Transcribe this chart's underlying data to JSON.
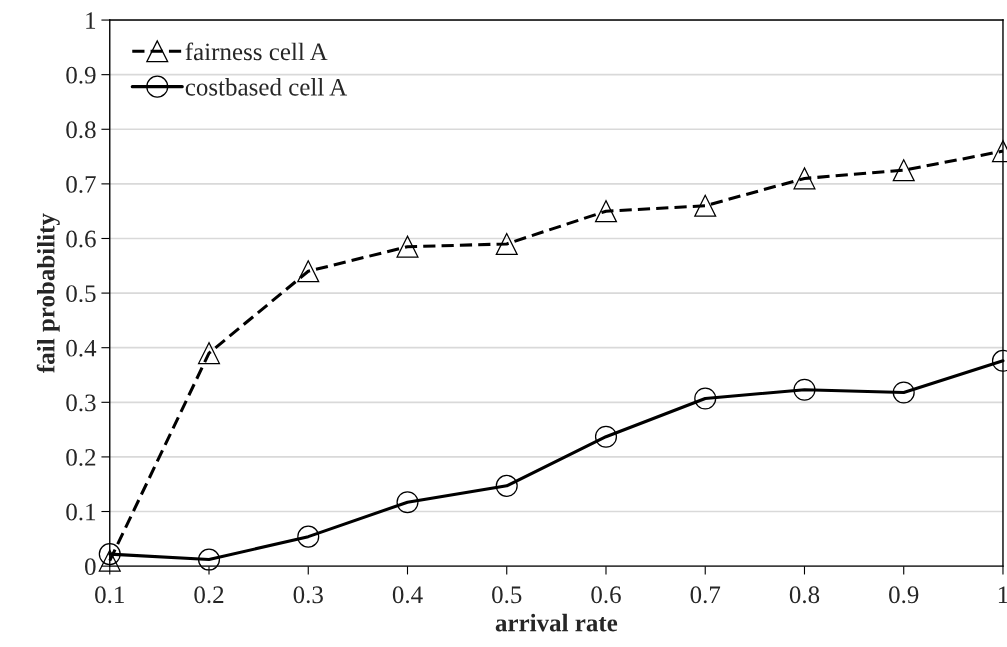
{
  "chart_data": {
    "type": "line",
    "xlabel": "arrival rate",
    "ylabel": "fail probability",
    "x": [
      0.1,
      0.2,
      0.3,
      0.4,
      0.5,
      0.6,
      0.7,
      0.8,
      0.9,
      1
    ],
    "series": [
      {
        "name": "fairness cell A",
        "color": "#000000",
        "marker": "triangle",
        "line_style": "dashed",
        "values": [
          0.01,
          0.39,
          0.54,
          0.585,
          0.59,
          0.65,
          0.66,
          0.71,
          0.725,
          0.76
        ]
      },
      {
        "name": "costbased cell A",
        "color": "#000000",
        "marker": "circle",
        "line_style": "solid",
        "values": [
          0.022,
          0.012,
          0.054,
          0.117,
          0.147,
          0.237,
          0.307,
          0.323,
          0.318,
          0.376
        ]
      }
    ],
    "xlim": [
      0.1,
      1
    ],
    "xticks": [
      0.1,
      0.2,
      0.3,
      0.4,
      0.5,
      0.6,
      0.7,
      0.8,
      0.9,
      1
    ],
    "ylim": [
      0,
      1
    ],
    "yticks": [
      0,
      0.1,
      0.2,
      0.3,
      0.4,
      0.5,
      0.6,
      0.7,
      0.8,
      0.9,
      1
    ],
    "grid": "y",
    "legend": "top left"
  }
}
